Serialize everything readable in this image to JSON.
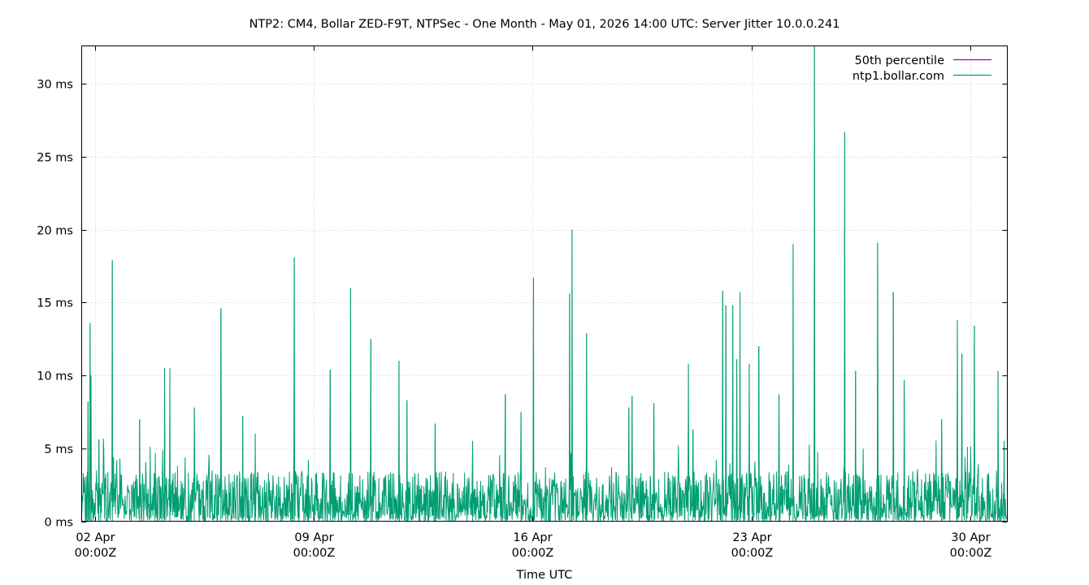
{
  "chart_data": {
    "type": "line",
    "title": "NTP2: CM4, Bollar ZED-F9T, NTPSec - One Month - May 01, 2026 14:00 UTC: Server Jitter 10.0.0.241",
    "xlabel": "Time UTC",
    "ylabel": "",
    "y_unit": "ms",
    "ylim": [
      0,
      32.6
    ],
    "y_ticks": [
      0,
      5,
      10,
      15,
      20,
      25,
      30
    ],
    "y_tick_labels": [
      "0 ms",
      "5 ms",
      "10 ms",
      "15 ms",
      "20 ms",
      "25 ms",
      "30 ms"
    ],
    "x_unit": "days since plot start (Apr 01 ~23:25Z)",
    "xlim": [
      0,
      29.6
    ],
    "x_ticks": [
      {
        "value": 0.417,
        "line1": "02 Apr",
        "line2": "00:00Z"
      },
      {
        "value": 7.417,
        "line1": "09 Apr",
        "line2": "00:00Z"
      },
      {
        "value": 14.417,
        "line1": "16 Apr",
        "line2": "00:00Z"
      },
      {
        "value": 21.417,
        "line1": "23 Apr",
        "line2": "00:00Z"
      },
      {
        "value": 28.417,
        "line1": "30 Apr",
        "line2": "00:00Z"
      }
    ],
    "grid": true,
    "legend_position": "top-right",
    "series": [
      {
        "name": "50th percentile",
        "color": "#9400d3",
        "values": []
      },
      {
        "name": "ntp1.bollar.com",
        "color": "#009e73",
        "baseline_level": 1.8,
        "spikes": [
          {
            "x": 0.27,
            "y": 13.6
          },
          {
            "x": 0.2,
            "y": 8.2
          },
          {
            "x": 0.3,
            "y": 10.0
          },
          {
            "x": 0.55,
            "y": 5.6
          },
          {
            "x": 0.98,
            "y": 17.9
          },
          {
            "x": 1.85,
            "y": 7.0
          },
          {
            "x": 2.65,
            "y": 10.5
          },
          {
            "x": 2.82,
            "y": 10.5
          },
          {
            "x": 3.6,
            "y": 7.8
          },
          {
            "x": 4.45,
            "y": 14.6
          },
          {
            "x": 5.15,
            "y": 7.2
          },
          {
            "x": 5.55,
            "y": 6.0
          },
          {
            "x": 6.8,
            "y": 18.1
          },
          {
            "x": 7.25,
            "y": 4.2
          },
          {
            "x": 7.95,
            "y": 10.4
          },
          {
            "x": 8.6,
            "y": 16.0
          },
          {
            "x": 9.25,
            "y": 12.5
          },
          {
            "x": 10.15,
            "y": 11.0
          },
          {
            "x": 10.4,
            "y": 8.3
          },
          {
            "x": 11.3,
            "y": 6.7
          },
          {
            "x": 12.5,
            "y": 5.5
          },
          {
            "x": 13.55,
            "y": 8.7
          },
          {
            "x": 14.05,
            "y": 7.5
          },
          {
            "x": 14.45,
            "y": 16.7
          },
          {
            "x": 15.6,
            "y": 15.6
          },
          {
            "x": 15.68,
            "y": 20.0
          },
          {
            "x": 16.15,
            "y": 12.9
          },
          {
            "x": 17.5,
            "y": 7.8
          },
          {
            "x": 17.6,
            "y": 8.6
          },
          {
            "x": 18.3,
            "y": 8.1
          },
          {
            "x": 19.55,
            "y": 6.3
          },
          {
            "x": 19.4,
            "y": 10.8
          },
          {
            "x": 20.5,
            "y": 15.8
          },
          {
            "x": 20.6,
            "y": 14.8
          },
          {
            "x": 20.82,
            "y": 14.8
          },
          {
            "x": 20.95,
            "y": 11.1
          },
          {
            "x": 21.05,
            "y": 15.7
          },
          {
            "x": 21.35,
            "y": 10.8
          },
          {
            "x": 21.65,
            "y": 12.0
          },
          {
            "x": 22.3,
            "y": 8.7
          },
          {
            "x": 22.75,
            "y": 19.0
          },
          {
            "x": 23.43,
            "y": 32.6
          },
          {
            "x": 24.4,
            "y": 26.7
          },
          {
            "x": 24.75,
            "y": 10.3
          },
          {
            "x": 25.45,
            "y": 19.1
          },
          {
            "x": 25.95,
            "y": 15.7
          },
          {
            "x": 26.3,
            "y": 9.7
          },
          {
            "x": 27.5,
            "y": 7.0
          },
          {
            "x": 28.0,
            "y": 13.8
          },
          {
            "x": 28.15,
            "y": 11.5
          },
          {
            "x": 28.55,
            "y": 13.4
          },
          {
            "x": 29.3,
            "y": 10.3
          },
          {
            "x": 29.5,
            "y": 5.5
          }
        ]
      }
    ]
  }
}
